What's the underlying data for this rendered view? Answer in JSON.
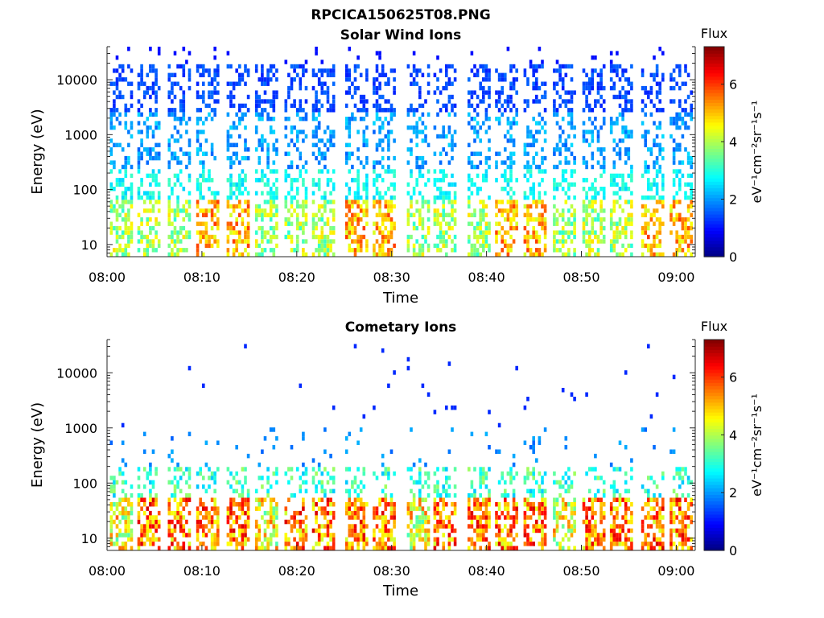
{
  "figure": {
    "title": "RPCICA150625T08.PNG"
  },
  "chart_data": [
    {
      "type": "heatmap",
      "title": "Solar Wind Ions",
      "xlabel": "Time",
      "ylabel": "Energy (eV)",
      "x_ticks": [
        "08:00",
        "08:10",
        "08:20",
        "08:30",
        "08:40",
        "08:50",
        "09:00"
      ],
      "x_range_minutes": [
        0,
        62
      ],
      "y_scale": "log",
      "y_ticks": [
        "10",
        "100",
        "1000",
        "10000"
      ],
      "y_range": [
        6,
        40000
      ],
      "colorbar": {
        "title": "Flux",
        "unit": "eV⁻¹cm⁻²sr⁻¹s⁻¹",
        "range": [
          0,
          7.3
        ],
        "ticks": [
          "0",
          "2",
          "4",
          "6"
        ],
        "colormap": "jet"
      },
      "bursts_start_minutes": [
        0.3,
        3.2,
        6.4,
        9.4,
        12.6,
        15.6,
        18.7,
        21.6,
        25.1,
        28.0,
        31.6,
        34.4,
        38.0,
        40.9,
        43.9,
        47.0,
        50.1,
        53.0,
        56.3,
        59.3
      ],
      "grid": false
    },
    {
      "type": "heatmap",
      "title": "Cometary Ions",
      "xlabel": "Time",
      "ylabel": "Energy (eV)",
      "x_ticks": [
        "08:00",
        "08:10",
        "08:20",
        "08:30",
        "08:40",
        "08:50",
        "09:00"
      ],
      "x_range_minutes": [
        0,
        62
      ],
      "y_scale": "log",
      "y_ticks": [
        "10",
        "100",
        "1000",
        "10000"
      ],
      "y_range": [
        6,
        40000
      ],
      "colorbar": {
        "title": "Flux",
        "unit": "eV⁻¹cm⁻²sr⁻¹s⁻¹",
        "range": [
          0,
          7.3
        ],
        "ticks": [
          "0",
          "2",
          "4",
          "6"
        ],
        "colormap": "jet"
      },
      "bursts_start_minutes": [
        0.3,
        3.2,
        6.4,
        9.4,
        12.6,
        15.6,
        18.7,
        21.6,
        25.1,
        28.0,
        31.6,
        34.4,
        38.0,
        40.9,
        43.9,
        47.0,
        50.1,
        53.0,
        56.3,
        59.3
      ],
      "grid": false
    }
  ]
}
